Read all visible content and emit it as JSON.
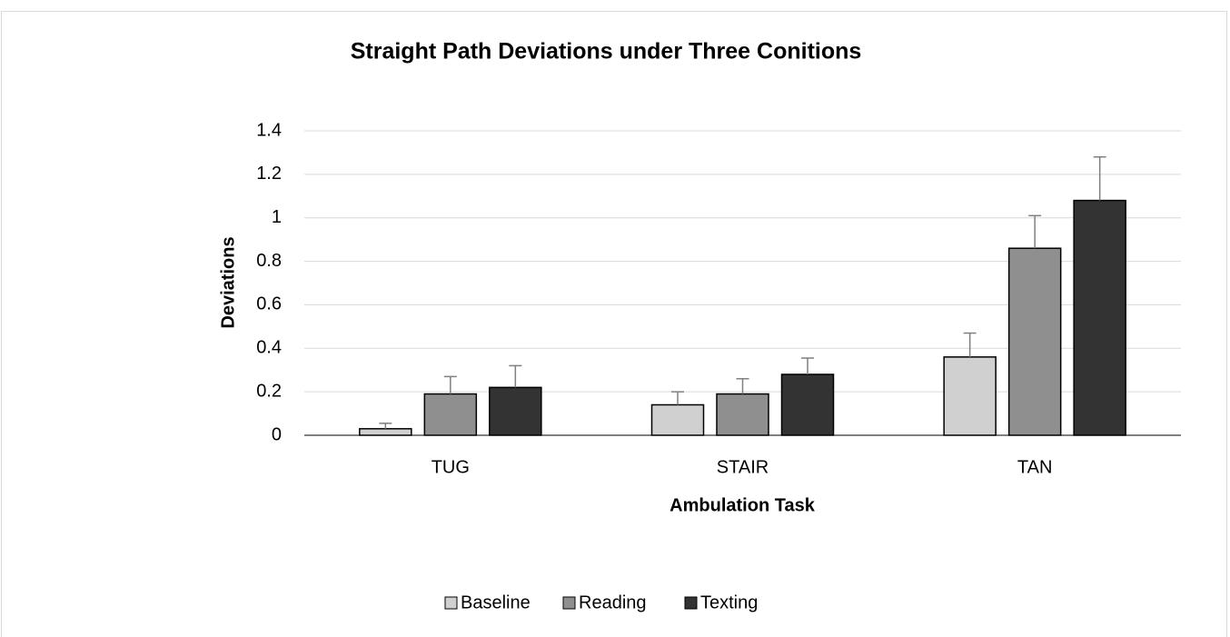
{
  "chart_data": {
    "type": "bar",
    "title": "Straight Path Deviations under Three Conitions",
    "x_label": "Ambulation Task",
    "y_label": "Deviations",
    "categories": [
      "TUG",
      "STAIR",
      "TAN"
    ],
    "series": [
      {
        "name": "Baseline",
        "color": "#d0d0d0",
        "values": [
          0.03,
          0.14,
          0.36
        ],
        "errors": [
          0.025,
          0.06,
          0.11
        ]
      },
      {
        "name": "Reading",
        "color": "#8f8f8f",
        "values": [
          0.19,
          0.19,
          0.86
        ],
        "errors": [
          0.08,
          0.07,
          0.15
        ]
      },
      {
        "name": "Texting",
        "color": "#333333",
        "values": [
          0.22,
          0.28,
          1.08
        ],
        "errors": [
          0.1,
          0.075,
          0.2
        ]
      }
    ],
    "ylim": [
      0,
      1.4
    ],
    "yticks": [
      0,
      0.2,
      0.4,
      0.6,
      0.8,
      1,
      1.2,
      1.4
    ],
    "grid": true,
    "legend": "bottom"
  }
}
